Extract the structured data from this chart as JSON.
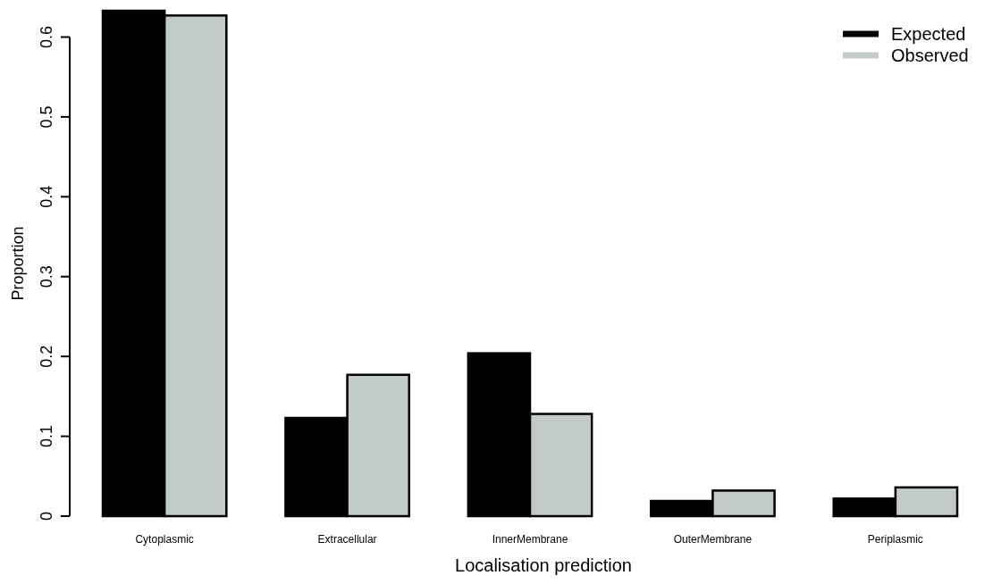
{
  "chart_data": {
    "type": "bar",
    "xlabel": "Localisation prediction",
    "ylabel": "Proportion",
    "categories": [
      "Cytoplasmic",
      "Extracellular",
      "InnerMembrane",
      "OuterMembrane",
      "Periplasmic"
    ],
    "series": [
      {
        "name": "Expected",
        "color": "#000000",
        "values": [
          0.633,
          0.123,
          0.204,
          0.019,
          0.022
        ]
      },
      {
        "name": "Observed",
        "color": "#c3cbc9",
        "values": [
          0.627,
          0.177,
          0.128,
          0.032,
          0.036
        ]
      }
    ],
    "ylim": [
      0,
      0.633
    ],
    "yticks": [
      0,
      0.1,
      0.2,
      0.3,
      0.4,
      0.5,
      0.6
    ],
    "grid": false,
    "legend": "top right"
  }
}
